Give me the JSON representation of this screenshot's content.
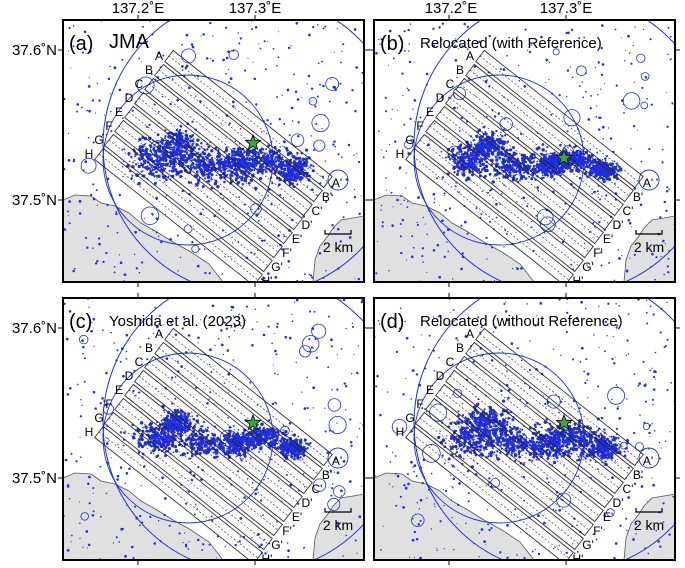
{
  "figure": {
    "lon_ticks": [
      "137.2˚E",
      "137.3˚E"
    ],
    "lat_ticks": [
      "37.6˚N",
      "37.5˚N"
    ],
    "scale_bar": "2 km",
    "colors": {
      "events": "#1f2fe0",
      "land": "#e0e0e0",
      "profiles": "#222222",
      "epicenter": "#3aa83a",
      "frame": "#000000"
    },
    "epicenter_icon": "star-icon",
    "panels": [
      {
        "label": "(a)",
        "title": "JMA"
      },
      {
        "label": "(b)",
        "title": "Relocated (with Reference)"
      },
      {
        "label": "(c)",
        "title": "Yoshida et al. (2023)"
      },
      {
        "label": "(d)",
        "title": "Relocated (without Reference)"
      }
    ],
    "profiles": [
      {
        "start": "A",
        "end": "A'"
      },
      {
        "start": "B",
        "end": "B'"
      },
      {
        "start": "C",
        "end": "C'"
      },
      {
        "start": "D",
        "end": "D'"
      },
      {
        "start": "E",
        "end": "E'"
      },
      {
        "start": "F",
        "end": "F'"
      },
      {
        "start": "G",
        "end": "G'"
      },
      {
        "start": "H",
        "end": "H'"
      }
    ]
  }
}
